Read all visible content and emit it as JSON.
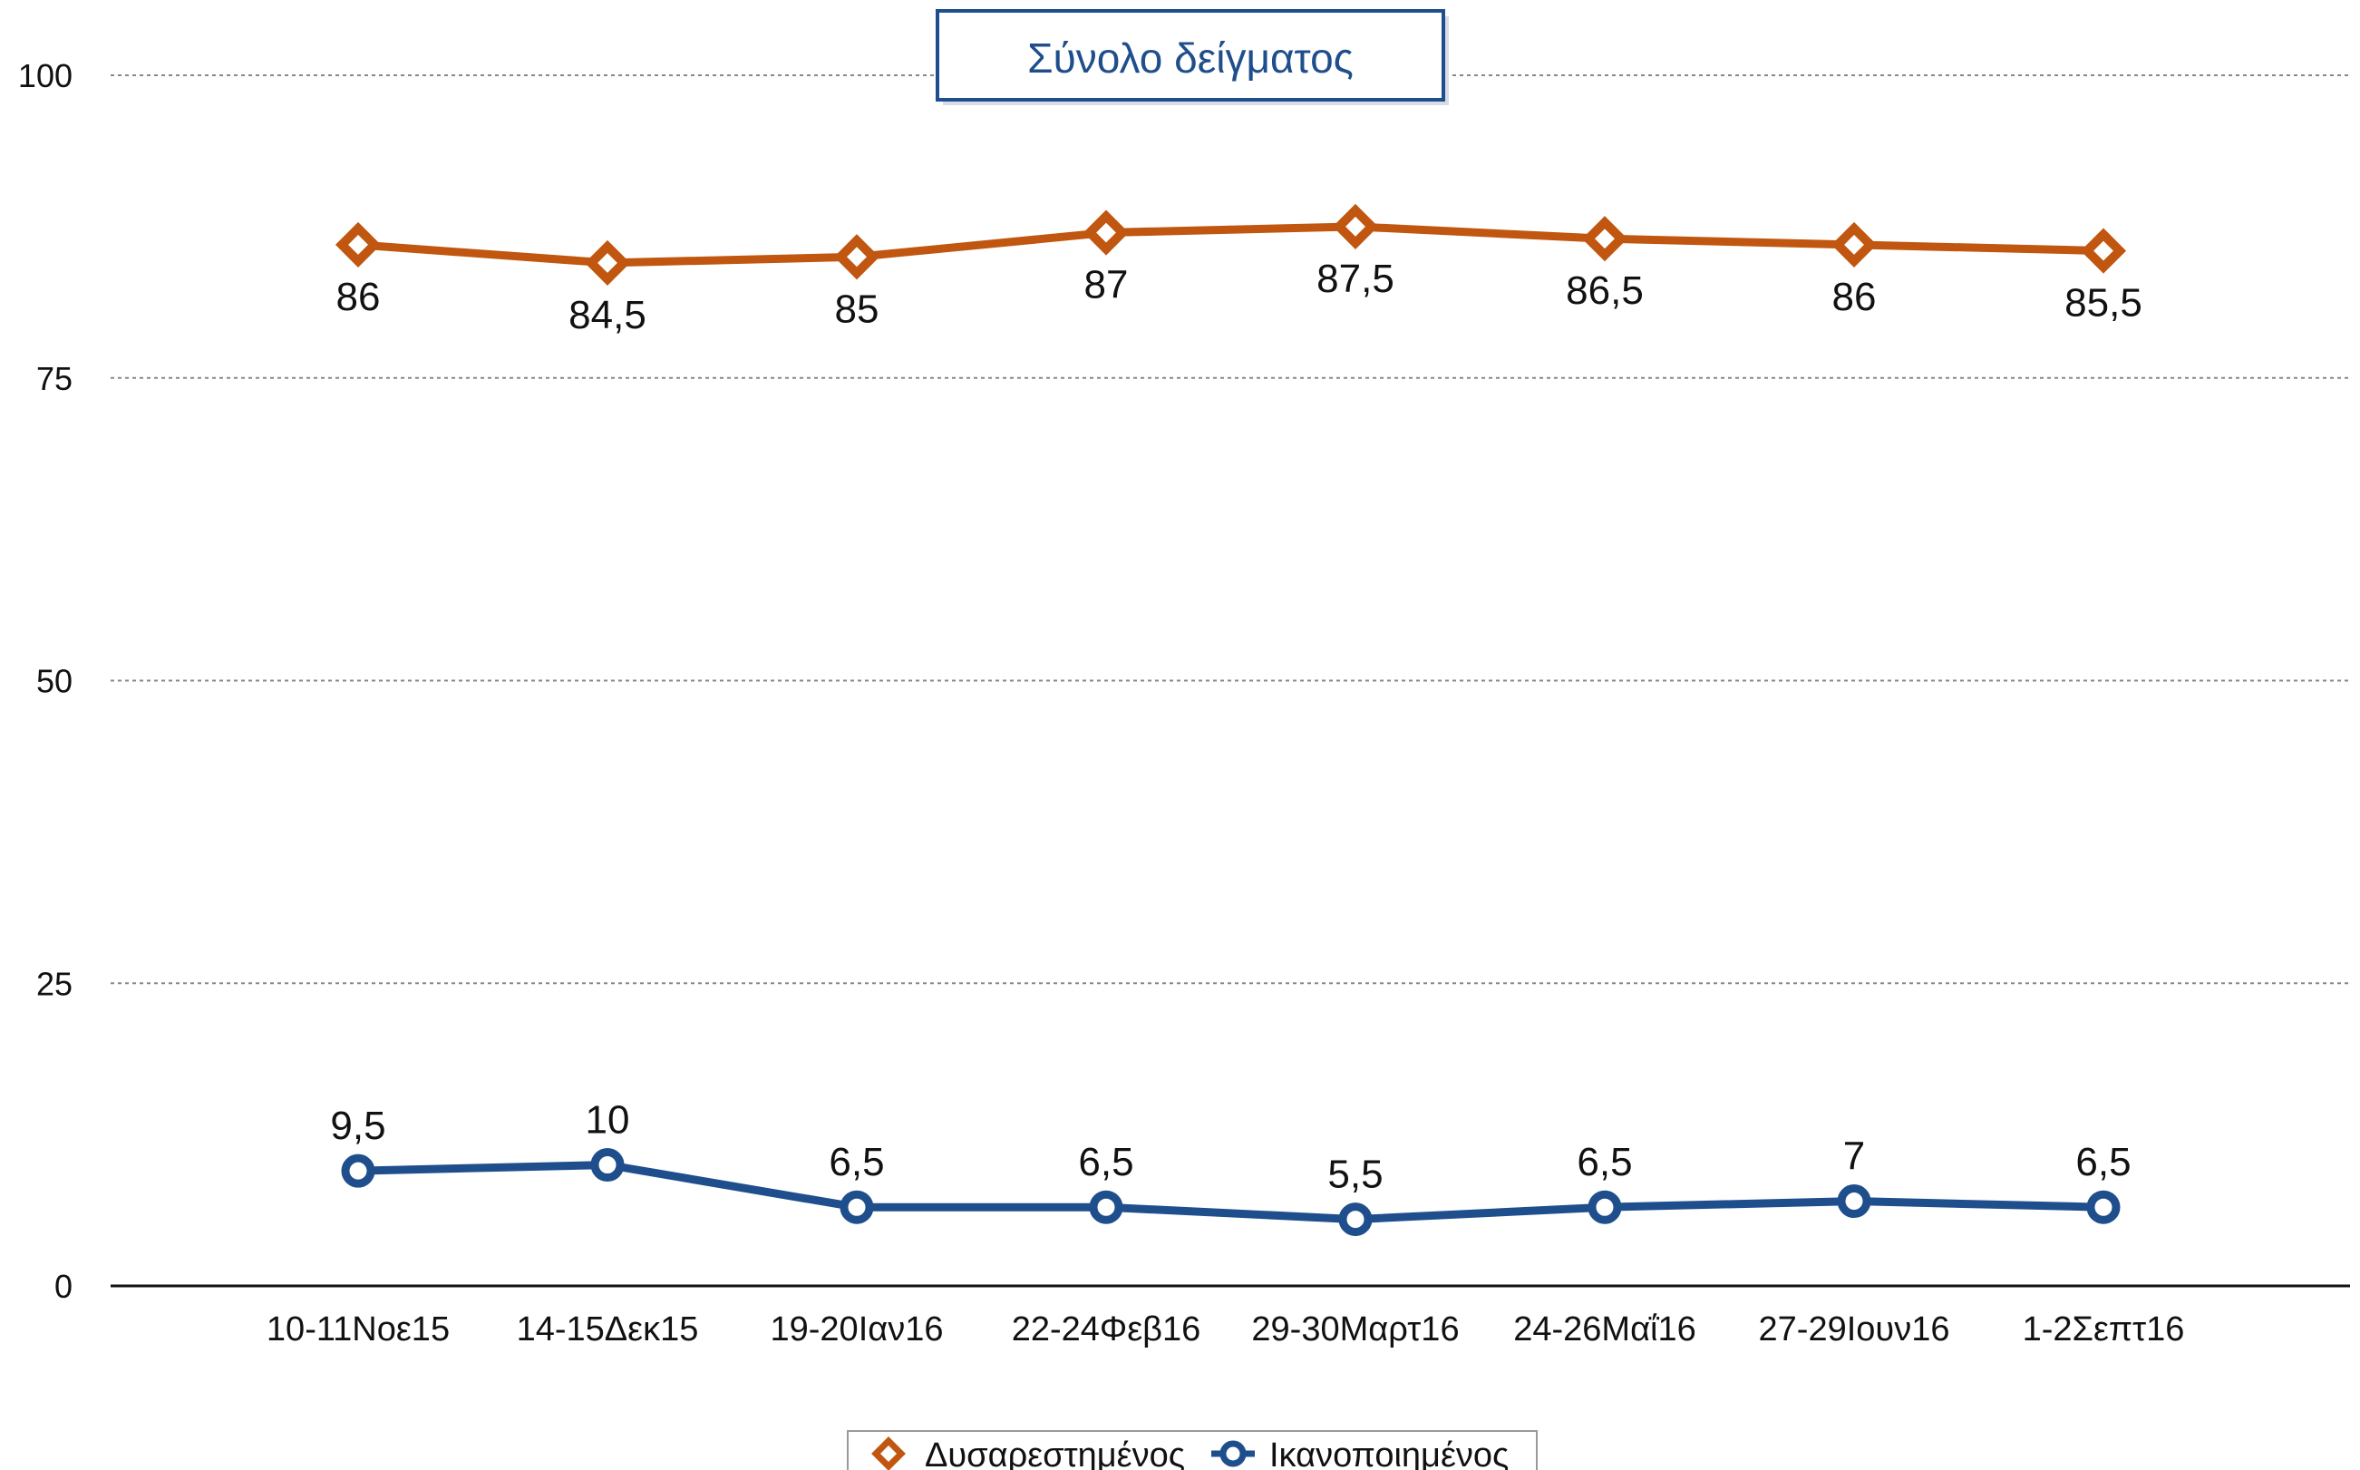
{
  "chart_data": {
    "type": "line",
    "title": "Σύνολο δείγματος",
    "xlabel": "",
    "ylabel": "",
    "categories": [
      "10-11Νοε15",
      "14-15Δεκ15",
      "19-20Ιαν16",
      "22-24Φεβ16",
      "29-30Μαρτ16",
      "24-26Μαΐ16",
      "27-29Ιουν16",
      "1-2Σεπτ16"
    ],
    "ylim": [
      0,
      100
    ],
    "yticks": [
      0,
      25,
      50,
      75,
      100
    ],
    "grid": true,
    "legend_position": "bottom-center",
    "series": [
      {
        "name": "Δυσαρεστημένος",
        "values": [
          86,
          84.5,
          85,
          87,
          87.5,
          86.5,
          86,
          85.5
        ],
        "labels": [
          "86",
          "84,5",
          "85",
          "87",
          "87,5",
          "86,5",
          "86",
          "85,5"
        ],
        "color": "#c0560f",
        "marker": "diamond",
        "label_position": "below"
      },
      {
        "name": "Ικανοποιημένος",
        "values": [
          9.5,
          10,
          6.5,
          6.5,
          5.5,
          6.5,
          7,
          6.5
        ],
        "labels": [
          "9,5",
          "10",
          "6,5",
          "6,5",
          "5,5",
          "6,5",
          "7",
          "6,5"
        ],
        "color": "#1f4e8c",
        "marker": "circle",
        "label_position": "above"
      }
    ]
  }
}
